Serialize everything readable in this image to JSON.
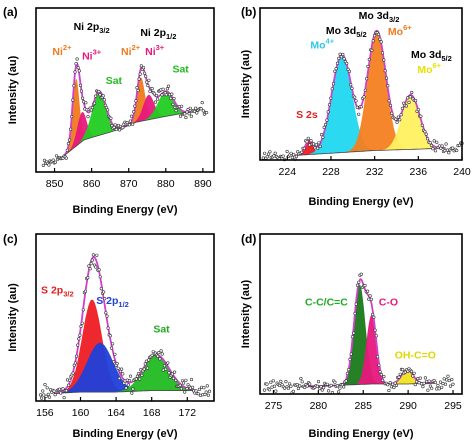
{
  "chart_data": [
    {
      "panel_label": "(a)",
      "type": "line",
      "xlabel": "Binding Energy (eV)",
      "ylabel": "Intensity (au)",
      "xlim": [
        845,
        893
      ],
      "x_ticks": [
        850,
        860,
        870,
        880,
        890
      ],
      "annotations": [
        {
          "text": "Ni 2p",
          "sub": "3/2",
          "sup": "",
          "color": "#000000",
          "x": 860,
          "y": 0.97
        },
        {
          "text": "Ni 2p",
          "sub": "1/2",
          "sup": "",
          "color": "#000000",
          "x": 878,
          "y": 0.93
        },
        {
          "text": "Ni",
          "sub": "",
          "sup": "2+",
          "color": "#f07a1e",
          "x": 852,
          "y": 0.8
        },
        {
          "text": "Ni",
          "sub": "",
          "sup": "3+",
          "color": "#e8177c",
          "x": 860,
          "y": 0.77
        },
        {
          "text": "Sat",
          "sub": "",
          "sup": "",
          "color": "#22bb22",
          "x": 866,
          "y": 0.6
        },
        {
          "text": "Ni",
          "sub": "",
          "sup": "2+",
          "color": "#f07a1e",
          "x": 870.5,
          "y": 0.8
        },
        {
          "text": "Ni",
          "sub": "",
          "sup": "3+",
          "color": "#e8177c",
          "x": 877,
          "y": 0.8
        },
        {
          "text": "Sat",
          "sub": "",
          "sup": "",
          "color": "#22bb22",
          "x": 884,
          "y": 0.68
        }
      ],
      "peaks": [
        {
          "label": "Ni2+",
          "center": 855.8,
          "fwhm": 2.2,
          "height": 0.46,
          "color": "#f07a1e"
        },
        {
          "label": "Ni3+",
          "center": 857.4,
          "fwhm": 3.0,
          "height": 0.2,
          "color": "#e8177c"
        },
        {
          "label": "Sat",
          "center": 862.0,
          "fwhm": 4.5,
          "height": 0.3,
          "color": "#22cc22"
        },
        {
          "label": "Ni2+",
          "center": 873.3,
          "fwhm": 2.5,
          "height": 0.3,
          "color": "#f07a1e"
        },
        {
          "label": "Ni3+",
          "center": 875.4,
          "fwhm": 3.5,
          "height": 0.17,
          "color": "#e8177c"
        },
        {
          "label": "Sat",
          "center": 880.0,
          "fwhm": 5.0,
          "height": 0.17,
          "color": "#22cc22"
        }
      ],
      "baseline": [
        [
          846,
          0.03
        ],
        [
          852,
          0.1
        ],
        [
          858,
          0.22
        ],
        [
          866,
          0.28
        ],
        [
          872,
          0.34
        ],
        [
          880,
          0.38
        ],
        [
          889,
          0.42
        ]
      ],
      "fit_range": [
        852,
        889
      ],
      "data_range": [
        847,
        891
      ],
      "noise": 0.035
    },
    {
      "panel_label": "(b)",
      "type": "line",
      "xlabel": "Binding Energy (eV)",
      "ylabel": "Intensity (au)",
      "xlim": [
        221.5,
        240
      ],
      "x_ticks": [
        224,
        228,
        232,
        236,
        240
      ],
      "x_tick_labels": [
        "224",
        "228",
        "232",
        "236",
        "240"
      ],
      "annotations": [
        {
          "text": "Mo 3d",
          "sub": "3/2",
          "sup": "",
          "color": "#000000",
          "x": 232.4,
          "y": 1.04
        },
        {
          "text": "Mo 3d",
          "sub": "5/2",
          "sup": "",
          "color": "#000000",
          "x": 229.4,
          "y": 0.93
        },
        {
          "text": "Mo",
          "sub": "",
          "sup": "6+",
          "color": "#f07a1e",
          "x": 234.3,
          "y": 0.92
        },
        {
          "text": "Mo",
          "sub": "",
          "sup": "4+",
          "color": "#2ec8e8",
          "x": 227.2,
          "y": 0.82
        },
        {
          "text": "Mo 3d",
          "sub": "5/2",
          "sup": "",
          "color": "#000000",
          "x": 237.2,
          "y": 0.75
        },
        {
          "text": "Mo",
          "sub": "",
          "sup": "6+",
          "color": "#e8e000",
          "x": 237.0,
          "y": 0.64
        },
        {
          "text": "S 2s",
          "sub": "",
          "sup": "",
          "color": "#e02020",
          "x": 225.8,
          "y": 0.31
        }
      ],
      "peaks": [
        {
          "label": "S 2s",
          "center": 226.0,
          "fwhm": 0.9,
          "height": 0.1,
          "color": "#ee1c24"
        },
        {
          "label": "Mo4+",
          "center": 229.0,
          "fwhm": 2.2,
          "height": 0.72,
          "color": "#20d8f0"
        },
        {
          "label": "Mo6+",
          "center": 232.2,
          "fwhm": 2.0,
          "height": 0.88,
          "color": "#f48020"
        },
        {
          "label": "Mo6+",
          "center": 235.3,
          "fwhm": 2.0,
          "height": 0.4,
          "color": "#fff060"
        }
      ],
      "baseline": [
        [
          224,
          0.03
        ],
        [
          228,
          0.05
        ],
        [
          232,
          0.07
        ],
        [
          236,
          0.08
        ],
        [
          239,
          0.09
        ]
      ],
      "fit_range": [
        224.5,
        238.5
      ],
      "data_range": [
        221.8,
        240
      ],
      "noise": 0.03
    },
    {
      "panel_label": "(c)",
      "type": "line",
      "xlabel": "Binding Energy (eV)",
      "ylabel": "Intensity (au)",
      "xlim": [
        155,
        175
      ],
      "x_ticks": [
        156,
        160,
        164,
        168,
        172
      ],
      "annotations": [
        {
          "text": "S 2p",
          "sub": "3/2",
          "sup": "",
          "color": "#e02020",
          "x": 157.4,
          "y": 0.72
        },
        {
          "text": "S 2p",
          "sub": "1/2",
          "sup": "",
          "color": "#2040d0",
          "x": 163.6,
          "y": 0.65
        },
        {
          "text": "Sat",
          "sub": "",
          "sup": "",
          "color": "#22aa22",
          "x": 169.1,
          "y": 0.46
        }
      ],
      "peaks": [
        {
          "label": "S 2p3/2",
          "center": 161.3,
          "fwhm": 2.6,
          "height": 0.62,
          "color": "#ee1c24"
        },
        {
          "label": "S 2p1/2",
          "center": 162.2,
          "fwhm": 3.5,
          "height": 0.33,
          "color": "#1f3fd8"
        },
        {
          "label": "Sat",
          "center": 168.5,
          "fwhm": 3.5,
          "height": 0.24,
          "color": "#22bb22"
        }
      ],
      "baseline": [
        [
          157,
          0.05
        ],
        [
          160,
          0.06
        ],
        [
          164,
          0.06
        ],
        [
          168,
          0.07
        ],
        [
          172,
          0.07
        ]
      ],
      "fit_range": [
        157,
        173
      ],
      "data_range": [
        155.5,
        174.5
      ],
      "noise": 0.05
    },
    {
      "panel_label": "(d)",
      "type": "line",
      "xlabel": "Binding Energy (eV)",
      "ylabel": "Intensity (au)",
      "xlim": [
        273.5,
        296
      ],
      "x_ticks": [
        275,
        280,
        285,
        290,
        295
      ],
      "annotations": [
        {
          "text": "C-C/C=C",
          "sub": "",
          "sup": "",
          "color": "#22aa22",
          "x": 280.9,
          "y": 0.62
        },
        {
          "text": "C-O",
          "sub": "",
          "sup": "",
          "color": "#e8177c",
          "x": 287.8,
          "y": 0.62
        },
        {
          "text": "OH-C=O",
          "sub": "",
          "sup": "",
          "color": "#e0d800",
          "x": 290.8,
          "y": 0.25
        }
      ],
      "peaks": [
        {
          "label": "C-C/C=C",
          "center": 284.6,
          "fwhm": 1.5,
          "height": 0.7,
          "color": "#1a7a1a"
        },
        {
          "label": "C-O",
          "center": 285.9,
          "fwhm": 1.3,
          "height": 0.48,
          "color": "#e8177c"
        },
        {
          "label": "OH-C=O",
          "center": 289.9,
          "fwhm": 1.5,
          "height": 0.1,
          "color": "#f0e020"
        }
      ],
      "baseline": [
        [
          277,
          0.05
        ],
        [
          282,
          0.06
        ],
        [
          286,
          0.07
        ],
        [
          290,
          0.07
        ],
        [
          294,
          0.08
        ]
      ],
      "fit_range": [
        278,
        293
      ],
      "data_range": [
        274,
        295
      ],
      "noise": 0.04
    }
  ]
}
